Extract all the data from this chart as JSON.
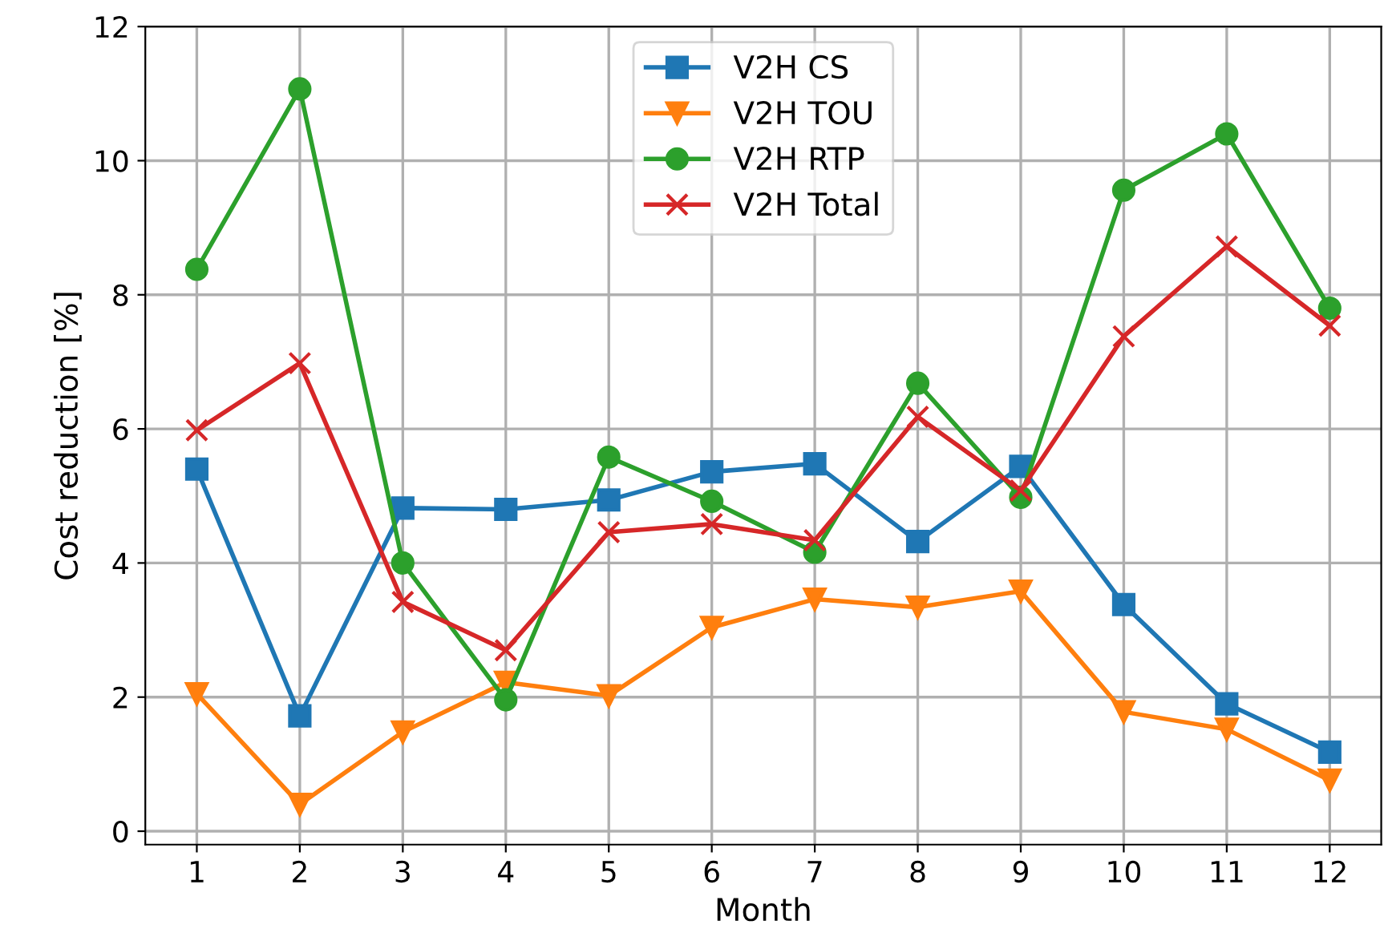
{
  "chart_data": {
    "type": "line",
    "xlabel": "Month",
    "ylabel": "Cost reduction [%]",
    "categories": [
      "1",
      "2",
      "3",
      "4",
      "5",
      "6",
      "7",
      "8",
      "9",
      "10",
      "11",
      "12"
    ],
    "ylim": [
      -0.2,
      12
    ],
    "yticks": [
      0,
      2,
      4,
      6,
      8,
      10,
      12
    ],
    "grid": true,
    "legend": "top center",
    "series": [
      {
        "name": "V2H CS",
        "color": "#1f77b4",
        "marker": "square",
        "values": [
          5.4,
          1.72,
          4.82,
          4.8,
          4.94,
          5.36,
          5.48,
          4.32,
          5.44,
          3.38,
          1.9,
          1.18
        ]
      },
      {
        "name": "V2H TOU",
        "color": "#ff7f0e",
        "marker": "triangle",
        "values": [
          2.05,
          0.4,
          1.48,
          2.22,
          2.02,
          3.04,
          3.46,
          3.34,
          3.58,
          1.78,
          1.52,
          0.76
        ]
      },
      {
        "name": "V2H RTP",
        "color": "#2ca02c",
        "marker": "circle",
        "values": [
          8.38,
          11.07,
          4.0,
          1.96,
          5.58,
          4.92,
          4.16,
          6.68,
          4.98,
          9.56,
          10.4,
          7.8
        ]
      },
      {
        "name": "V2H Total",
        "color": "#d62728",
        "marker": "cross",
        "values": [
          5.98,
          6.98,
          3.42,
          2.7,
          4.46,
          4.58,
          4.34,
          6.18,
          5.08,
          7.38,
          8.72,
          7.54
        ]
      }
    ]
  }
}
